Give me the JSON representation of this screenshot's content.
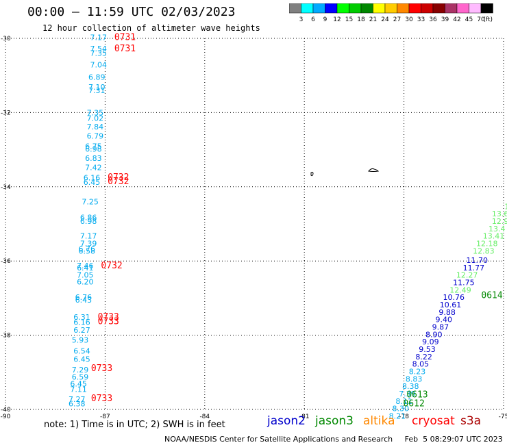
{
  "title": "00:00 – 11:59 UTC 02/03/2023",
  "subtitle": "12 hour collection of altimeter wave heights",
  "legend": {
    "swatches": [
      {
        "color": "#808080",
        "label": "3"
      },
      {
        "color": "#00ffff",
        "label": "6"
      },
      {
        "color": "#00aaff",
        "label": "9"
      },
      {
        "color": "#0000ff",
        "label": "12"
      },
      {
        "color": "#00ff00",
        "label": "15"
      },
      {
        "color": "#00cc00",
        "label": "18"
      },
      {
        "color": "#008800",
        "label": "21"
      },
      {
        "color": "#ffff00",
        "label": "24"
      },
      {
        "color": "#ffcc00",
        "label": "27"
      },
      {
        "color": "#ff8800",
        "label": "30"
      },
      {
        "color": "#ff0000",
        "label": "33"
      },
      {
        "color": "#cc0000",
        "label": "36"
      },
      {
        "color": "#880000",
        "label": "39"
      },
      {
        "color": "#aa3366",
        "label": "42"
      },
      {
        "color": "#ff66cc",
        "label": "45"
      },
      {
        "color": "#ffbbff",
        "label": "70"
      },
      {
        "color": "#000000",
        "label": ""
      }
    ],
    "unit": "(ft)"
  },
  "axes": {
    "lon_ticks": [
      {
        "lon": -90,
        "label": "-90"
      },
      {
        "lon": -87,
        "label": "-87"
      },
      {
        "lon": -84,
        "label": "-84"
      },
      {
        "lon": -81,
        "label": "-81"
      },
      {
        "lon": -78,
        "label": "-78"
      },
      {
        "lon": -75,
        "label": "-75"
      }
    ],
    "lat_ticks": [
      {
        "lat": -30,
        "label": "-30"
      },
      {
        "lat": -32,
        "label": "-32"
      },
      {
        "lat": -34,
        "label": "-34"
      },
      {
        "lat": -36,
        "label": "-36"
      },
      {
        "lat": -38,
        "label": "-38"
      },
      {
        "lat": -40,
        "label": "-40"
      }
    ]
  },
  "colors": {
    "cryosat": "#ff0000",
    "cryosat_swh": "#00aaee",
    "jason2": "#0000cc",
    "jason3": "#008800",
    "jason3_light": "#66ee66",
    "altika": "#ff8800",
    "s3a": "#aa0000",
    "grid": "#000000"
  },
  "observations": [
    {
      "sat": "cryosat",
      "lon": -87.2,
      "lat": -30.05,
      "text": "7.17"
    },
    {
      "sat": "cryosat",
      "lon": -87.2,
      "lat": -30.35,
      "text": "7.54"
    },
    {
      "sat": "cryosat",
      "lon": -87.2,
      "lat": -30.47,
      "text": "7.35"
    },
    {
      "sat": "cryosat",
      "lon": -87.2,
      "lat": -30.78,
      "text": "7.04"
    },
    {
      "sat": "cryosat",
      "lon": -87.25,
      "lat": -31.12,
      "text": "6.89"
    },
    {
      "sat": "cryosat",
      "lon": -87.25,
      "lat": -31.38,
      "text": "7.10"
    },
    {
      "sat": "cryosat",
      "lon": -87.25,
      "lat": -31.48,
      "text": "7.31"
    },
    {
      "sat": "cryosat",
      "lon": -87.3,
      "lat": -32.08,
      "text": "7.35"
    },
    {
      "sat": "cryosat",
      "lon": -87.3,
      "lat": -32.22,
      "text": "7.02"
    },
    {
      "sat": "cryosat",
      "lon": -87.3,
      "lat": -32.45,
      "text": "7.84"
    },
    {
      "sat": "cryosat",
      "lon": -87.3,
      "lat": -32.7,
      "text": "6.79"
    },
    {
      "sat": "cryosat",
      "lon": -87.35,
      "lat": -32.98,
      "text": "6.75"
    },
    {
      "sat": "cryosat",
      "lon": -87.35,
      "lat": -33.05,
      "text": "6.98"
    },
    {
      "sat": "cryosat",
      "lon": -87.35,
      "lat": -33.3,
      "text": "6.83"
    },
    {
      "sat": "cryosat",
      "lon": -87.35,
      "lat": -33.55,
      "text": "7.42"
    },
    {
      "sat": "cryosat",
      "lon": -87.4,
      "lat": -33.83,
      "text": "6.16"
    },
    {
      "sat": "cryosat",
      "lon": -87.4,
      "lat": -33.95,
      "text": "6.45"
    },
    {
      "sat": "cryosat",
      "lon": -87.45,
      "lat": -34.47,
      "text": "7.25"
    },
    {
      "sat": "cryosat",
      "lon": -87.5,
      "lat": -34.9,
      "text": "6.86"
    },
    {
      "sat": "cryosat",
      "lon": -87.5,
      "lat": -35.0,
      "text": "6.98"
    },
    {
      "sat": "cryosat",
      "lon": -87.5,
      "lat": -35.4,
      "text": "7.17"
    },
    {
      "sat": "cryosat",
      "lon": -87.5,
      "lat": -35.6,
      "text": "7.39"
    },
    {
      "sat": "cryosat",
      "lon": -87.55,
      "lat": -35.75,
      "text": "6.76"
    },
    {
      "sat": "cryosat",
      "lon": -87.55,
      "lat": -35.8,
      "text": "6.58"
    },
    {
      "sat": "cryosat",
      "lon": -87.6,
      "lat": -36.2,
      "text": "7.46"
    },
    {
      "sat": "cryosat",
      "lon": -87.6,
      "lat": -36.25,
      "text": "6.41"
    },
    {
      "sat": "cryosat",
      "lon": -87.6,
      "lat": -36.45,
      "text": "7.05"
    },
    {
      "sat": "cryosat",
      "lon": -87.6,
      "lat": -36.63,
      "text": "6.20"
    },
    {
      "sat": "cryosat",
      "lon": -87.65,
      "lat": -37.05,
      "text": "6.76"
    },
    {
      "sat": "cryosat",
      "lon": -87.65,
      "lat": -37.12,
      "text": "6.43"
    },
    {
      "sat": "cryosat",
      "lon": -87.7,
      "lat": -37.58,
      "text": "6.31"
    },
    {
      "sat": "cryosat",
      "lon": -87.7,
      "lat": -37.72,
      "text": "6.16"
    },
    {
      "sat": "cryosat",
      "lon": -87.7,
      "lat": -37.93,
      "text": "6.27"
    },
    {
      "sat": "cryosat",
      "lon": -87.75,
      "lat": -38.2,
      "text": "5.93"
    },
    {
      "sat": "cryosat",
      "lon": -87.7,
      "lat": -38.5,
      "text": "6.54"
    },
    {
      "sat": "cryosat",
      "lon": -87.7,
      "lat": -38.72,
      "text": "6.45"
    },
    {
      "sat": "cryosat",
      "lon": -87.75,
      "lat": -39.0,
      "text": "7.29"
    },
    {
      "sat": "cryosat",
      "lon": -87.75,
      "lat": -39.2,
      "text": "6.59"
    },
    {
      "sat": "cryosat",
      "lon": -87.8,
      "lat": -39.38,
      "text": "6.45"
    },
    {
      "sat": "cryosat",
      "lon": -87.8,
      "lat": -39.53,
      "text": "7.11"
    },
    {
      "sat": "cryosat",
      "lon": -87.85,
      "lat": -39.8,
      "text": "7.27"
    },
    {
      "sat": "cryosat",
      "lon": -87.85,
      "lat": -39.92,
      "text": "6.38"
    }
  ],
  "time_labels": [
    {
      "sat": "cryosat",
      "lon": -86.4,
      "lat": -30.05,
      "text": "0731"
    },
    {
      "sat": "cryosat",
      "lon": -86.4,
      "lat": -30.35,
      "text": "0731"
    },
    {
      "sat": "cryosat",
      "lon": -86.6,
      "lat": -33.82,
      "text": "0732"
    },
    {
      "sat": "cryosat",
      "lon": -86.6,
      "lat": -33.93,
      "text": "0732"
    },
    {
      "sat": "cryosat",
      "lon": -86.8,
      "lat": -36.2,
      "text": "0732"
    },
    {
      "sat": "cryosat",
      "lon": -86.9,
      "lat": -37.58,
      "text": "0733"
    },
    {
      "sat": "cryosat",
      "lon": -86.9,
      "lat": -37.7,
      "text": "0733"
    },
    {
      "sat": "cryosat",
      "lon": -87.1,
      "lat": -38.97,
      "text": "0733"
    },
    {
      "sat": "cryosat",
      "lon": -87.1,
      "lat": -39.78,
      "text": "0733"
    },
    {
      "sat": "jason3",
      "lon": -75.35,
      "lat": -37.0,
      "text": "0614"
    },
    {
      "sat": "jason3",
      "lon": -77.6,
      "lat": -39.68,
      "text": "0613"
    },
    {
      "sat": "jason3",
      "lon": -77.7,
      "lat": -39.92,
      "text": "0612"
    }
  ],
  "track_obs": [
    {
      "sat": "jason3l",
      "lon": -74.9,
      "lat": -34.6,
      "text": "1"
    },
    {
      "sat": "jason3l",
      "lon": -75.1,
      "lat": -34.8,
      "text": "13.6"
    },
    {
      "sat": "jason3l",
      "lon": -75.1,
      "lat": -35.0,
      "text": "12.9"
    },
    {
      "sat": "jason3l",
      "lon": -75.2,
      "lat": -35.2,
      "text": "13.4"
    },
    {
      "sat": "jason3l",
      "lon": -75.3,
      "lat": -35.4,
      "text": "13.41"
    },
    {
      "sat": "jason3l",
      "lon": -75.5,
      "lat": -35.6,
      "text": "12.18"
    },
    {
      "sat": "jason3l",
      "lon": -75.6,
      "lat": -35.8,
      "text": "12.83"
    },
    {
      "sat": "jason2",
      "lon": -75.8,
      "lat": -36.05,
      "text": "11.70"
    },
    {
      "sat": "jason2",
      "lon": -75.9,
      "lat": -36.25,
      "text": "11.77"
    },
    {
      "sat": "jason3l",
      "lon": -76.1,
      "lat": -36.45,
      "text": "12.27"
    },
    {
      "sat": "jason2",
      "lon": -76.2,
      "lat": -36.65,
      "text": "11.75"
    },
    {
      "sat": "jason3l",
      "lon": -76.3,
      "lat": -36.85,
      "text": "12.49"
    },
    {
      "sat": "jason2",
      "lon": -76.5,
      "lat": -37.05,
      "text": "10.76"
    },
    {
      "sat": "jason2",
      "lon": -76.6,
      "lat": -37.25,
      "text": "10.61"
    },
    {
      "sat": "jason2",
      "lon": -76.7,
      "lat": -37.45,
      "text": "9.88"
    },
    {
      "sat": "jason2",
      "lon": -76.8,
      "lat": -37.65,
      "text": "9.40"
    },
    {
      "sat": "jason2",
      "lon": -76.9,
      "lat": -37.85,
      "text": "9.87"
    },
    {
      "sat": "jason2",
      "lon": -77.1,
      "lat": -38.05,
      "text": "8.90"
    },
    {
      "sat": "jason2",
      "lon": -77.2,
      "lat": -38.25,
      "text": "9.09"
    },
    {
      "sat": "jason2",
      "lon": -77.3,
      "lat": -38.45,
      "text": "9.53"
    },
    {
      "sat": "jason2",
      "lon": -77.4,
      "lat": -38.65,
      "text": "8.22"
    },
    {
      "sat": "jason2",
      "lon": -77.5,
      "lat": -38.85,
      "text": "8.05"
    },
    {
      "sat": "cryosat",
      "lon": -77.6,
      "lat": -39.05,
      "text": "8.23"
    },
    {
      "sat": "cryosat",
      "lon": -77.7,
      "lat": -39.25,
      "text": "8.83"
    },
    {
      "sat": "cryosat",
      "lon": -77.8,
      "lat": -39.45,
      "text": "8.38"
    },
    {
      "sat": "cryosat",
      "lon": -77.9,
      "lat": -39.65,
      "text": "7.39"
    },
    {
      "sat": "cryosat",
      "lon": -78.0,
      "lat": -39.85,
      "text": "8.11"
    },
    {
      "sat": "cryosat",
      "lon": -78.1,
      "lat": -40.05,
      "text": "8.30"
    },
    {
      "sat": "cryosat",
      "lon": -78.2,
      "lat": -40.25,
      "text": "8.21"
    }
  ],
  "note": "note: 1) Time is in UTC; 2) SWH is in feet",
  "sat_labels": {
    "jason2": "jason2",
    "jason3": "jason3",
    "altika": "altika",
    "cryosat": "cryosat",
    "s3a": "s3a"
  },
  "footer": "NOAA/NESDIS Center for Satellite Applications and Research     Feb  5 08:29:07 UTC 2023"
}
